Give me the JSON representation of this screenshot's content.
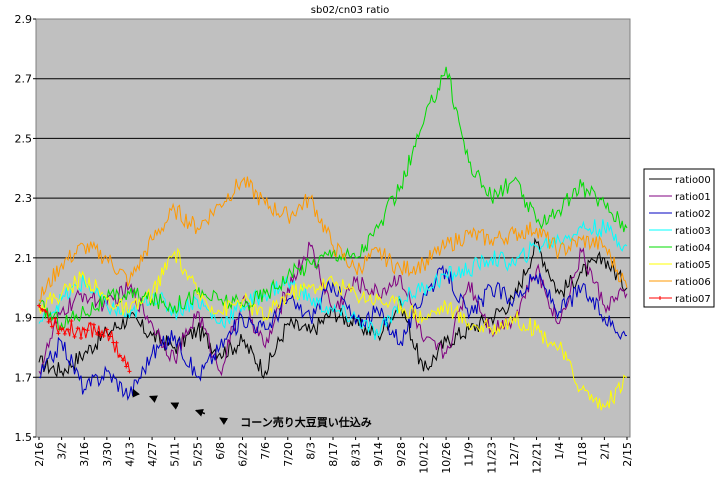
{
  "chart_data": {
    "type": "line",
    "title": "sb02/cn03 ratio",
    "xlabel": "",
    "ylabel": "",
    "ylim": [
      1.5,
      2.9
    ],
    "yticks": [
      "1.5",
      "1.7",
      "1.9",
      "2.1",
      "2.3",
      "2.5",
      "2.7",
      "2.9"
    ],
    "x": [
      "2/16",
      "3/2",
      "3/16",
      "3/30",
      "4/13",
      "4/27",
      "5/11",
      "5/25",
      "6/8",
      "6/22",
      "7/6",
      "7/20",
      "8/3",
      "8/17",
      "8/31",
      "9/14",
      "9/28",
      "10/12",
      "10/26",
      "11/9",
      "11/23",
      "12/7",
      "12/21",
      "1/4",
      "1/18",
      "2/1",
      "2/15"
    ],
    "grid": "horizontal",
    "plot_background": "#c0c0c0",
    "legend_position": "right",
    "series": [
      {
        "name": "ratio00",
        "color": "#000000",
        "values": [
          1.75,
          1.72,
          1.78,
          1.85,
          1.9,
          1.84,
          1.8,
          1.86,
          1.78,
          1.82,
          1.72,
          1.88,
          1.85,
          1.92,
          1.88,
          1.84,
          1.95,
          1.72,
          1.82,
          1.86,
          1.9,
          1.96,
          2.15,
          1.98,
          2.05,
          2.1,
          2.0
        ]
      },
      {
        "name": "ratio01",
        "color": "#800080",
        "values": [
          1.72,
          1.92,
          1.98,
          1.94,
          2.0,
          1.88,
          1.76,
          1.92,
          1.72,
          1.96,
          1.8,
          2.0,
          2.14,
          1.92,
          2.02,
          1.98,
          2.04,
          1.82,
          1.78,
          2.02,
          1.86,
          1.9,
          2.06,
          1.88,
          2.12,
          1.94,
          1.98
        ]
      },
      {
        "name": "ratio02",
        "color": "#0000c0",
        "values": [
          1.7,
          1.82,
          1.66,
          1.72,
          1.64,
          1.78,
          1.84,
          1.7,
          1.8,
          1.9,
          1.86,
          1.96,
          1.9,
          2.02,
          1.88,
          1.92,
          1.82,
          1.98,
          2.06,
          1.9,
          2.0,
          1.96,
          2.04,
          1.92,
          2.0,
          1.9,
          1.84
        ]
      },
      {
        "name": "ratio03",
        "color": "#00ffff",
        "values": [
          1.88,
          1.96,
          2.02,
          1.94,
          1.9,
          1.98,
          1.92,
          1.96,
          1.88,
          1.94,
          1.98,
          2.02,
          1.96,
          1.92,
          1.9,
          1.84,
          1.96,
          2.0,
          2.04,
          2.06,
          2.1,
          2.08,
          2.14,
          2.16,
          2.2,
          2.2,
          2.14
        ]
      },
      {
        "name": "ratio04",
        "color": "#00dd00",
        "values": [
          1.94,
          1.88,
          1.92,
          1.96,
          1.98,
          1.96,
          1.94,
          1.98,
          1.96,
          1.94,
          1.98,
          2.04,
          2.08,
          2.12,
          2.1,
          2.2,
          2.34,
          2.55,
          2.74,
          2.42,
          2.3,
          2.36,
          2.22,
          2.26,
          2.34,
          2.28,
          2.2
        ]
      },
      {
        "name": "ratio05",
        "color": "#ffff00",
        "values": [
          1.94,
          1.98,
          2.04,
          1.96,
          1.92,
          1.98,
          2.12,
          1.98,
          1.92,
          1.96,
          1.9,
          1.98,
          2.0,
          2.02,
          1.98,
          1.96,
          1.94,
          1.9,
          1.94,
          1.88,
          1.86,
          1.9,
          1.86,
          1.8,
          1.66,
          1.6,
          1.7
        ]
      },
      {
        "name": "ratio06",
        "color": "#ff9900",
        "values": [
          1.96,
          2.08,
          2.14,
          2.1,
          2.02,
          2.16,
          2.26,
          2.2,
          2.28,
          2.36,
          2.28,
          2.24,
          2.3,
          2.14,
          2.06,
          2.12,
          2.06,
          2.08,
          2.14,
          2.18,
          2.16,
          2.18,
          2.2,
          2.12,
          2.16,
          2.14,
          2.0
        ]
      },
      {
        "name": "ratio07",
        "color": "#ff0000",
        "marker": "+",
        "values": [
          1.94,
          1.86,
          1.86,
          1.86,
          1.72,
          null,
          null,
          null,
          null,
          null,
          null,
          null,
          null,
          null,
          null,
          null,
          null,
          null,
          null,
          null,
          null,
          null,
          null,
          null,
          null,
          null,
          null
        ]
      }
    ],
    "annotation": {
      "text": "コーン売り大豆買い仕込み",
      "arrow_points": [
        [
          3.9,
          1.67
        ],
        [
          4.5,
          1.645
        ],
        [
          5.4,
          1.625
        ],
        [
          6.4,
          1.6
        ],
        [
          7.6,
          1.575
        ],
        [
          8.5,
          1.55
        ]
      ],
      "text_anchor": [
        8.9,
        1.55
      ]
    }
  }
}
